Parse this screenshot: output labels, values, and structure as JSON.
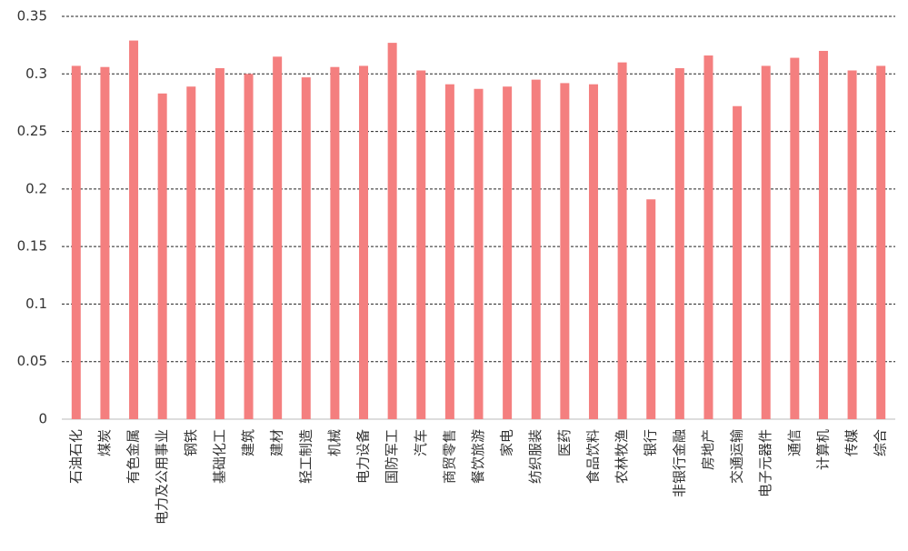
{
  "chart_data": {
    "type": "bar",
    "categories": [
      "石油石化",
      "煤炭",
      "有色金属",
      "电力及公用事业",
      "钢铁",
      "基础化工",
      "建筑",
      "建材",
      "轻工制造",
      "机械",
      "电力设备",
      "国防军工",
      "汽车",
      "商贸零售",
      "餐饮旅游",
      "家电",
      "纺织服装",
      "医药",
      "食品饮料",
      "农林牧渔",
      "银行",
      "非银行金融",
      "房地产",
      "交通运输",
      "电子元器件",
      "通信",
      "计算机",
      "传媒",
      "综合"
    ],
    "values": [
      0.307,
      0.306,
      0.329,
      0.283,
      0.289,
      0.305,
      0.3,
      0.315,
      0.297,
      0.306,
      0.307,
      0.327,
      0.303,
      0.291,
      0.287,
      0.289,
      0.295,
      0.292,
      0.291,
      0.31,
      0.191,
      0.305,
      0.316,
      0.272,
      0.307,
      0.314,
      0.32,
      0.303,
      0.307
    ],
    "color": "#f47f7f",
    "ylim": [
      0,
      0.35
    ],
    "yticks": [
      0,
      0.05,
      0.1,
      0.15,
      0.2,
      0.25,
      0.3,
      0.35
    ],
    "grid": true
  }
}
